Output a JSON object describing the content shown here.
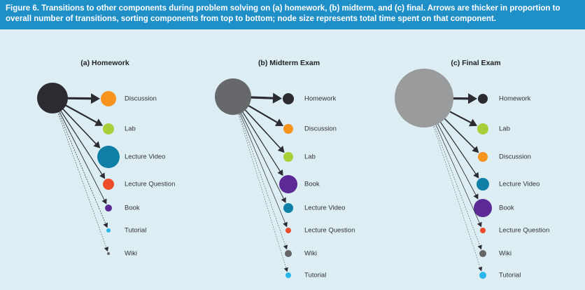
{
  "caption": "Figure 6. Transitions to other components during problem solving on (a) homework, (b) midterm, and (c) final. Arrows are thicker in proportion to overall number of transitions, sorting components from top to bottom; node size represents total time spent on that component.",
  "panels": [
    {
      "title": "(a) Homework",
      "source_color": "#2b2b30",
      "nodes": [
        {
          "label": "Discussion",
          "color": "#f7931e"
        },
        {
          "label": "Lab",
          "color": "#a9cf38"
        },
        {
          "label": "Lecture Video",
          "color": "#0f7fa6"
        },
        {
          "label": "Lecture Question",
          "color": "#ee4b2b"
        },
        {
          "label": "Book",
          "color": "#5b2a96"
        },
        {
          "label": "Tutorial",
          "color": "#29b6e8"
        },
        {
          "label": "Wiki",
          "color": "#666666"
        }
      ]
    },
    {
      "title": "(b) Midterm Exam",
      "source_color": "#67686b",
      "nodes": [
        {
          "label": "Homework",
          "color": "#2b2b30"
        },
        {
          "label": "Discussion",
          "color": "#f7931e"
        },
        {
          "label": "Lab",
          "color": "#a9cf38"
        },
        {
          "label": "Book",
          "color": "#5b2a96"
        },
        {
          "label": "Lecture Video",
          "color": "#0f7fa6"
        },
        {
          "label": "Lecture Question",
          "color": "#ee4b2b"
        },
        {
          "label": "Wiki",
          "color": "#666666"
        },
        {
          "label": "Tutorial",
          "color": "#29b6e8"
        }
      ]
    },
    {
      "title": "(c) Final Exam",
      "source_color": "#9a9b9d",
      "nodes": [
        {
          "label": "Homework",
          "color": "#2b2b30"
        },
        {
          "label": "Lab",
          "color": "#a9cf38"
        },
        {
          "label": "Discussion",
          "color": "#f7931e"
        },
        {
          "label": "Lecture Video",
          "color": "#0f7fa6"
        },
        {
          "label": "Book",
          "color": "#5b2a96"
        },
        {
          "label": "Lecture Question",
          "color": "#ee4b2b"
        },
        {
          "label": "Wiki",
          "color": "#666666"
        },
        {
          "label": "Tutorial",
          "color": "#29b6e8"
        }
      ]
    }
  ]
}
